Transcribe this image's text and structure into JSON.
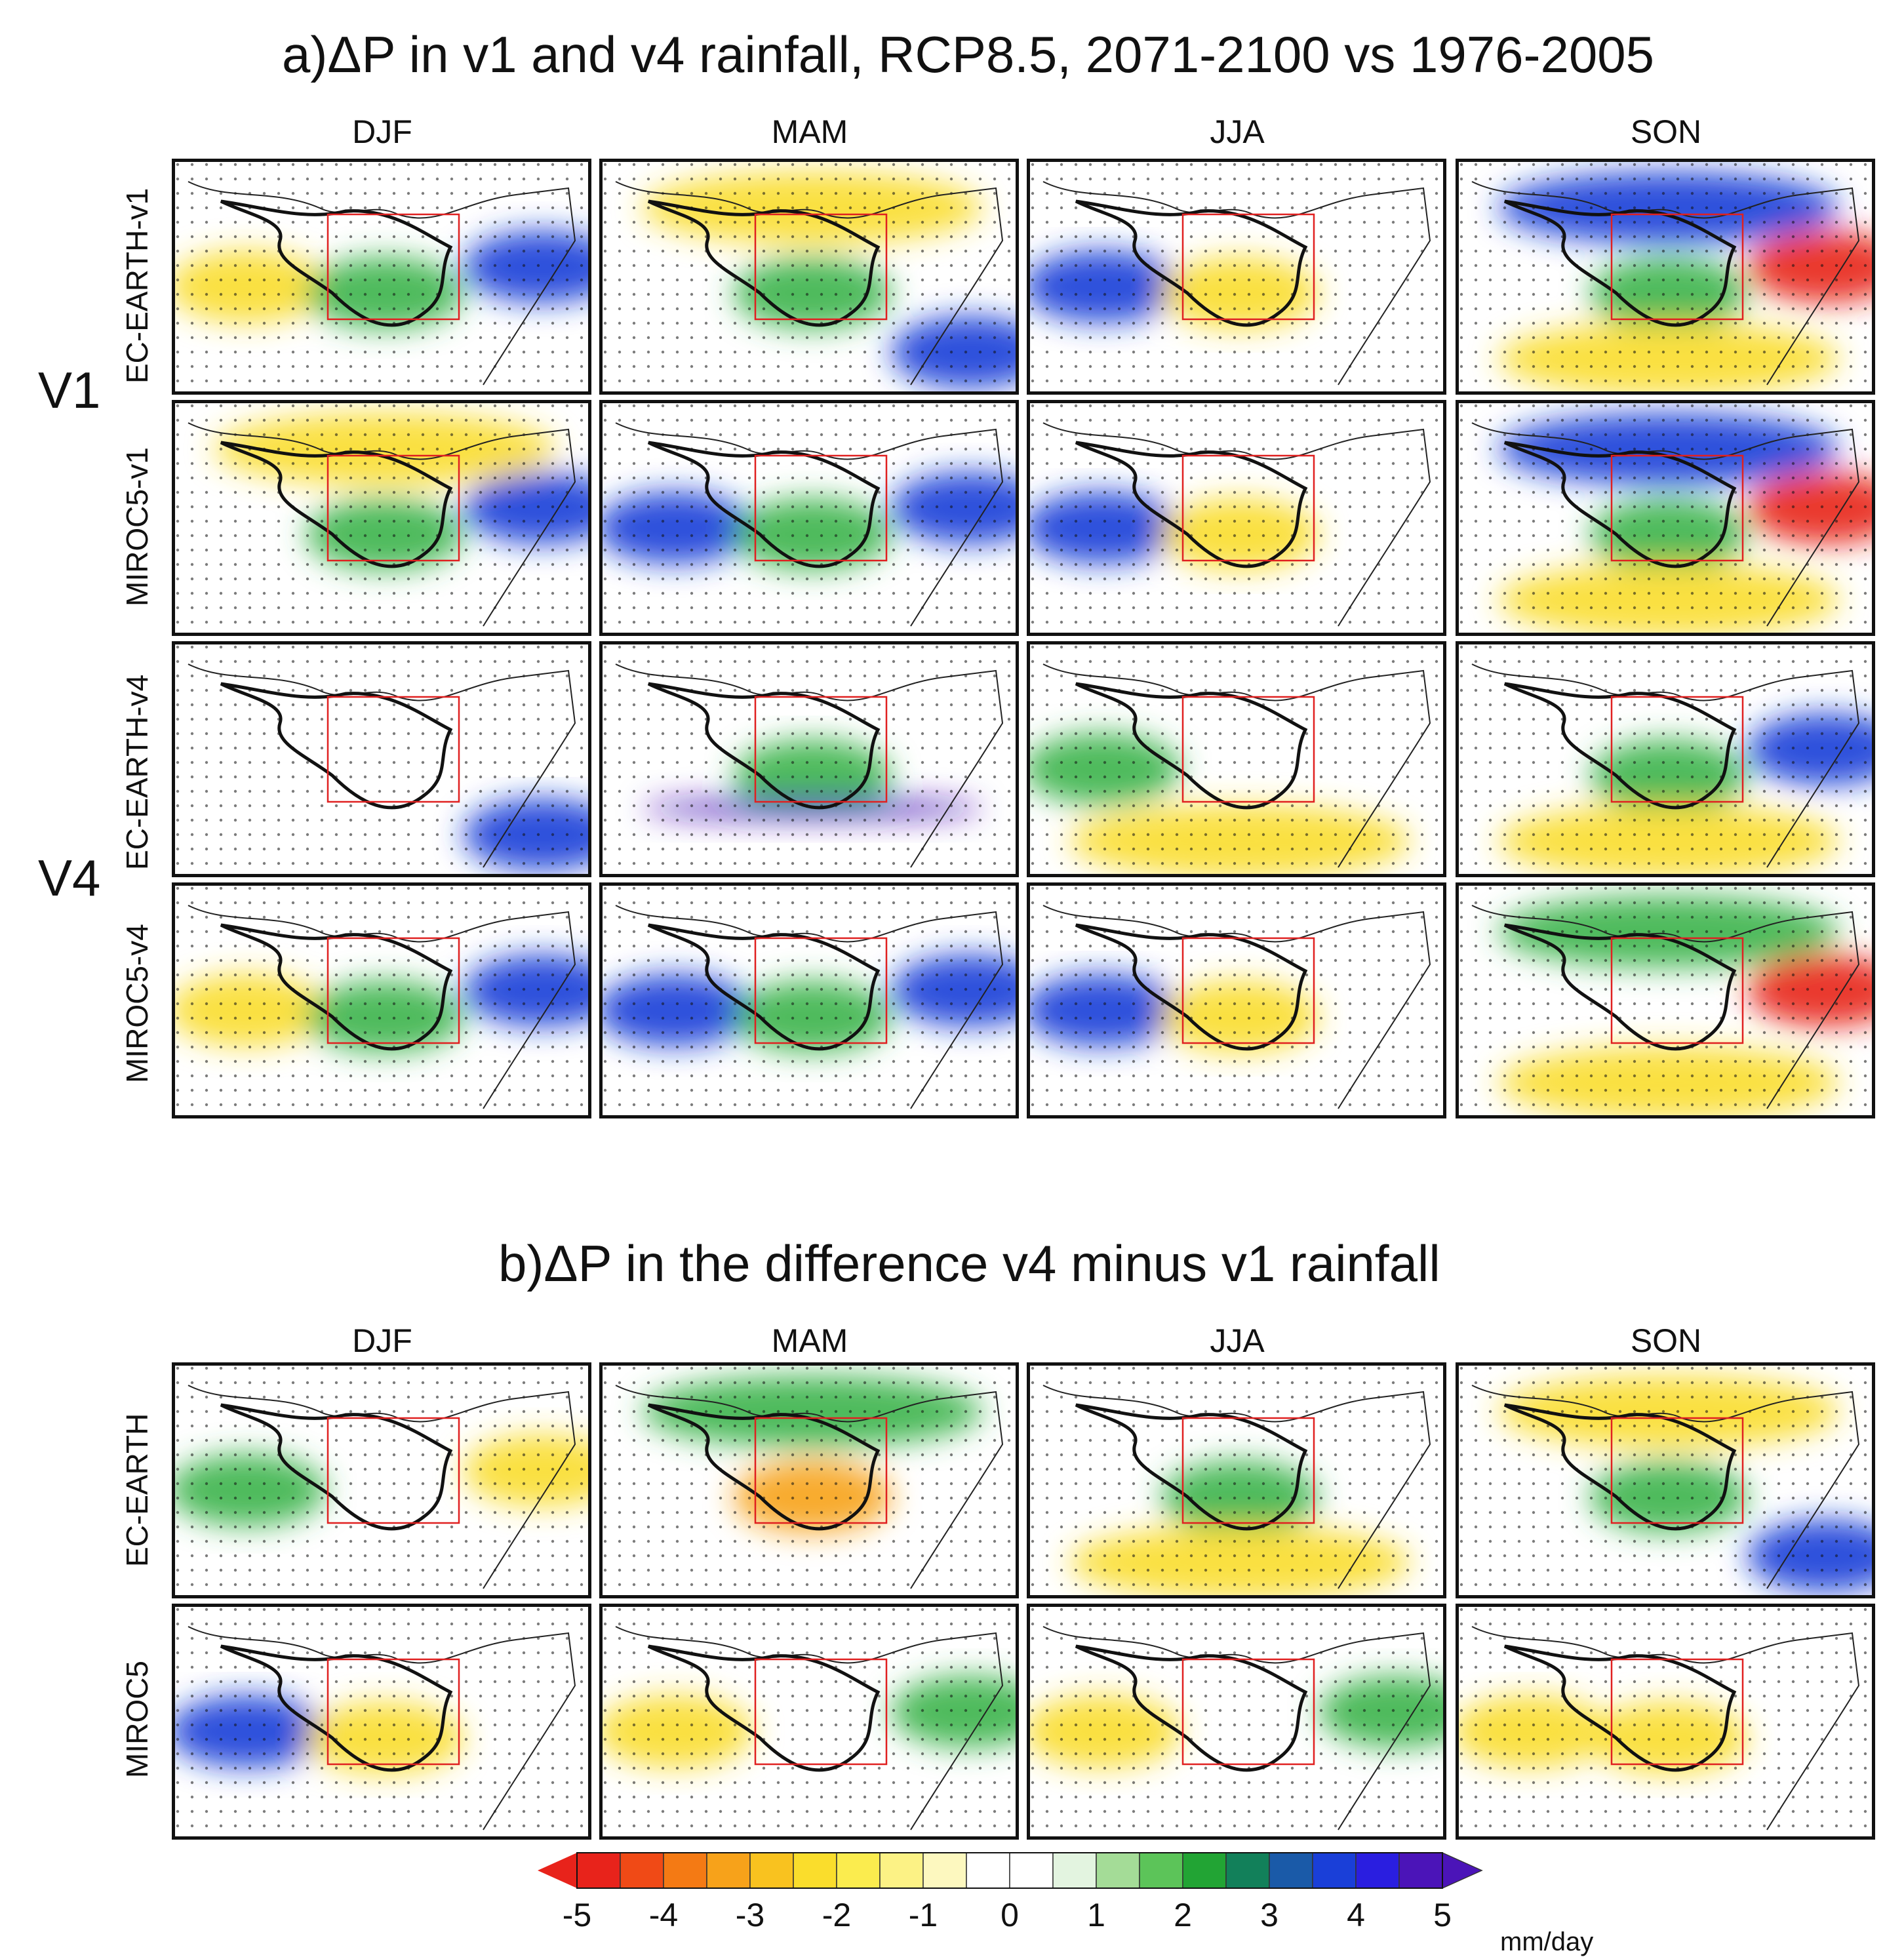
{
  "figure": {
    "section_a": {
      "label": "a)",
      "title": "ΔP in v1 and v4 rainfall, RCP8.5, 2071-2100 vs 1976-2005",
      "group_labels": [
        "V1",
        "V4"
      ],
      "row_labels": [
        "EC-EARTH-v1",
        "MIROC5-v1",
        "EC-EARTH-v4",
        "MIROC5-v4"
      ]
    },
    "section_b": {
      "label": "b)",
      "title": "ΔP in the difference v4 minus v1 rainfall",
      "row_labels": [
        "EC-EARTH",
        "MIROC5"
      ]
    },
    "seasons": [
      "DJF",
      "MAM",
      "JJA",
      "SON"
    ]
  },
  "chart_data": {
    "type": "heatmap",
    "description": "Grid of precipitation-change maps over Africa",
    "colorbar": {
      "unit": "mm/day",
      "tick_labels": [
        "-5",
        "-4",
        "-3",
        "-2",
        "-1",
        "0",
        "1",
        "2",
        "3",
        "4",
        "5"
      ],
      "range": [
        -5,
        5
      ],
      "colors": [
        "#e8231b",
        "#f04a16",
        "#f47a14",
        "#f7a21a",
        "#f9c21f",
        "#fadd2c",
        "#fbec4e",
        "#fcf285",
        "#fdf8bf",
        "#ffffff",
        "#ffffff",
        "#e3f4e0",
        "#a4dc97",
        "#5cc459",
        "#22a434",
        "#12805a",
        "#1a5aa8",
        "#1a3fd8",
        "#2a1ee0",
        "#4b14b8"
      ]
    },
    "panels": {
      "a": [
        [
          "yellow-west,green-center,blue-east",
          "yellow-north,green-center,blue-southeast",
          "blue-west,yellow-center",
          "blue-north,green-center,yellow-south,red-east"
        ],
        [
          "yellow-north,green-center,blue-east",
          "blue-west,green-center,blue-east",
          "blue-west,yellow-center",
          "blue-north,green-center,yellow-south,red-east"
        ],
        [
          "mostly-white,blue-southeast",
          "green-center,purple-band",
          "green-west,yellow-south",
          "green-center,blue-east,yellow-south"
        ],
        [
          "yellow-west,green-center,blue-east",
          "blue-west,green-center,blue-east",
          "blue-west,yellow-center",
          "green-north,yellow-south,red-east"
        ]
      ],
      "b": [
        [
          "green-west,yellow-east",
          "green-north,orange-center",
          "green-center,yellow-south",
          "yellow-north,green-center,blue-southeast"
        ],
        [
          "blue-west,yellow-center",
          "yellow-west,green-east",
          "yellow-west,green-east",
          "yellow-west,yellow-center"
        ]
      ]
    }
  }
}
